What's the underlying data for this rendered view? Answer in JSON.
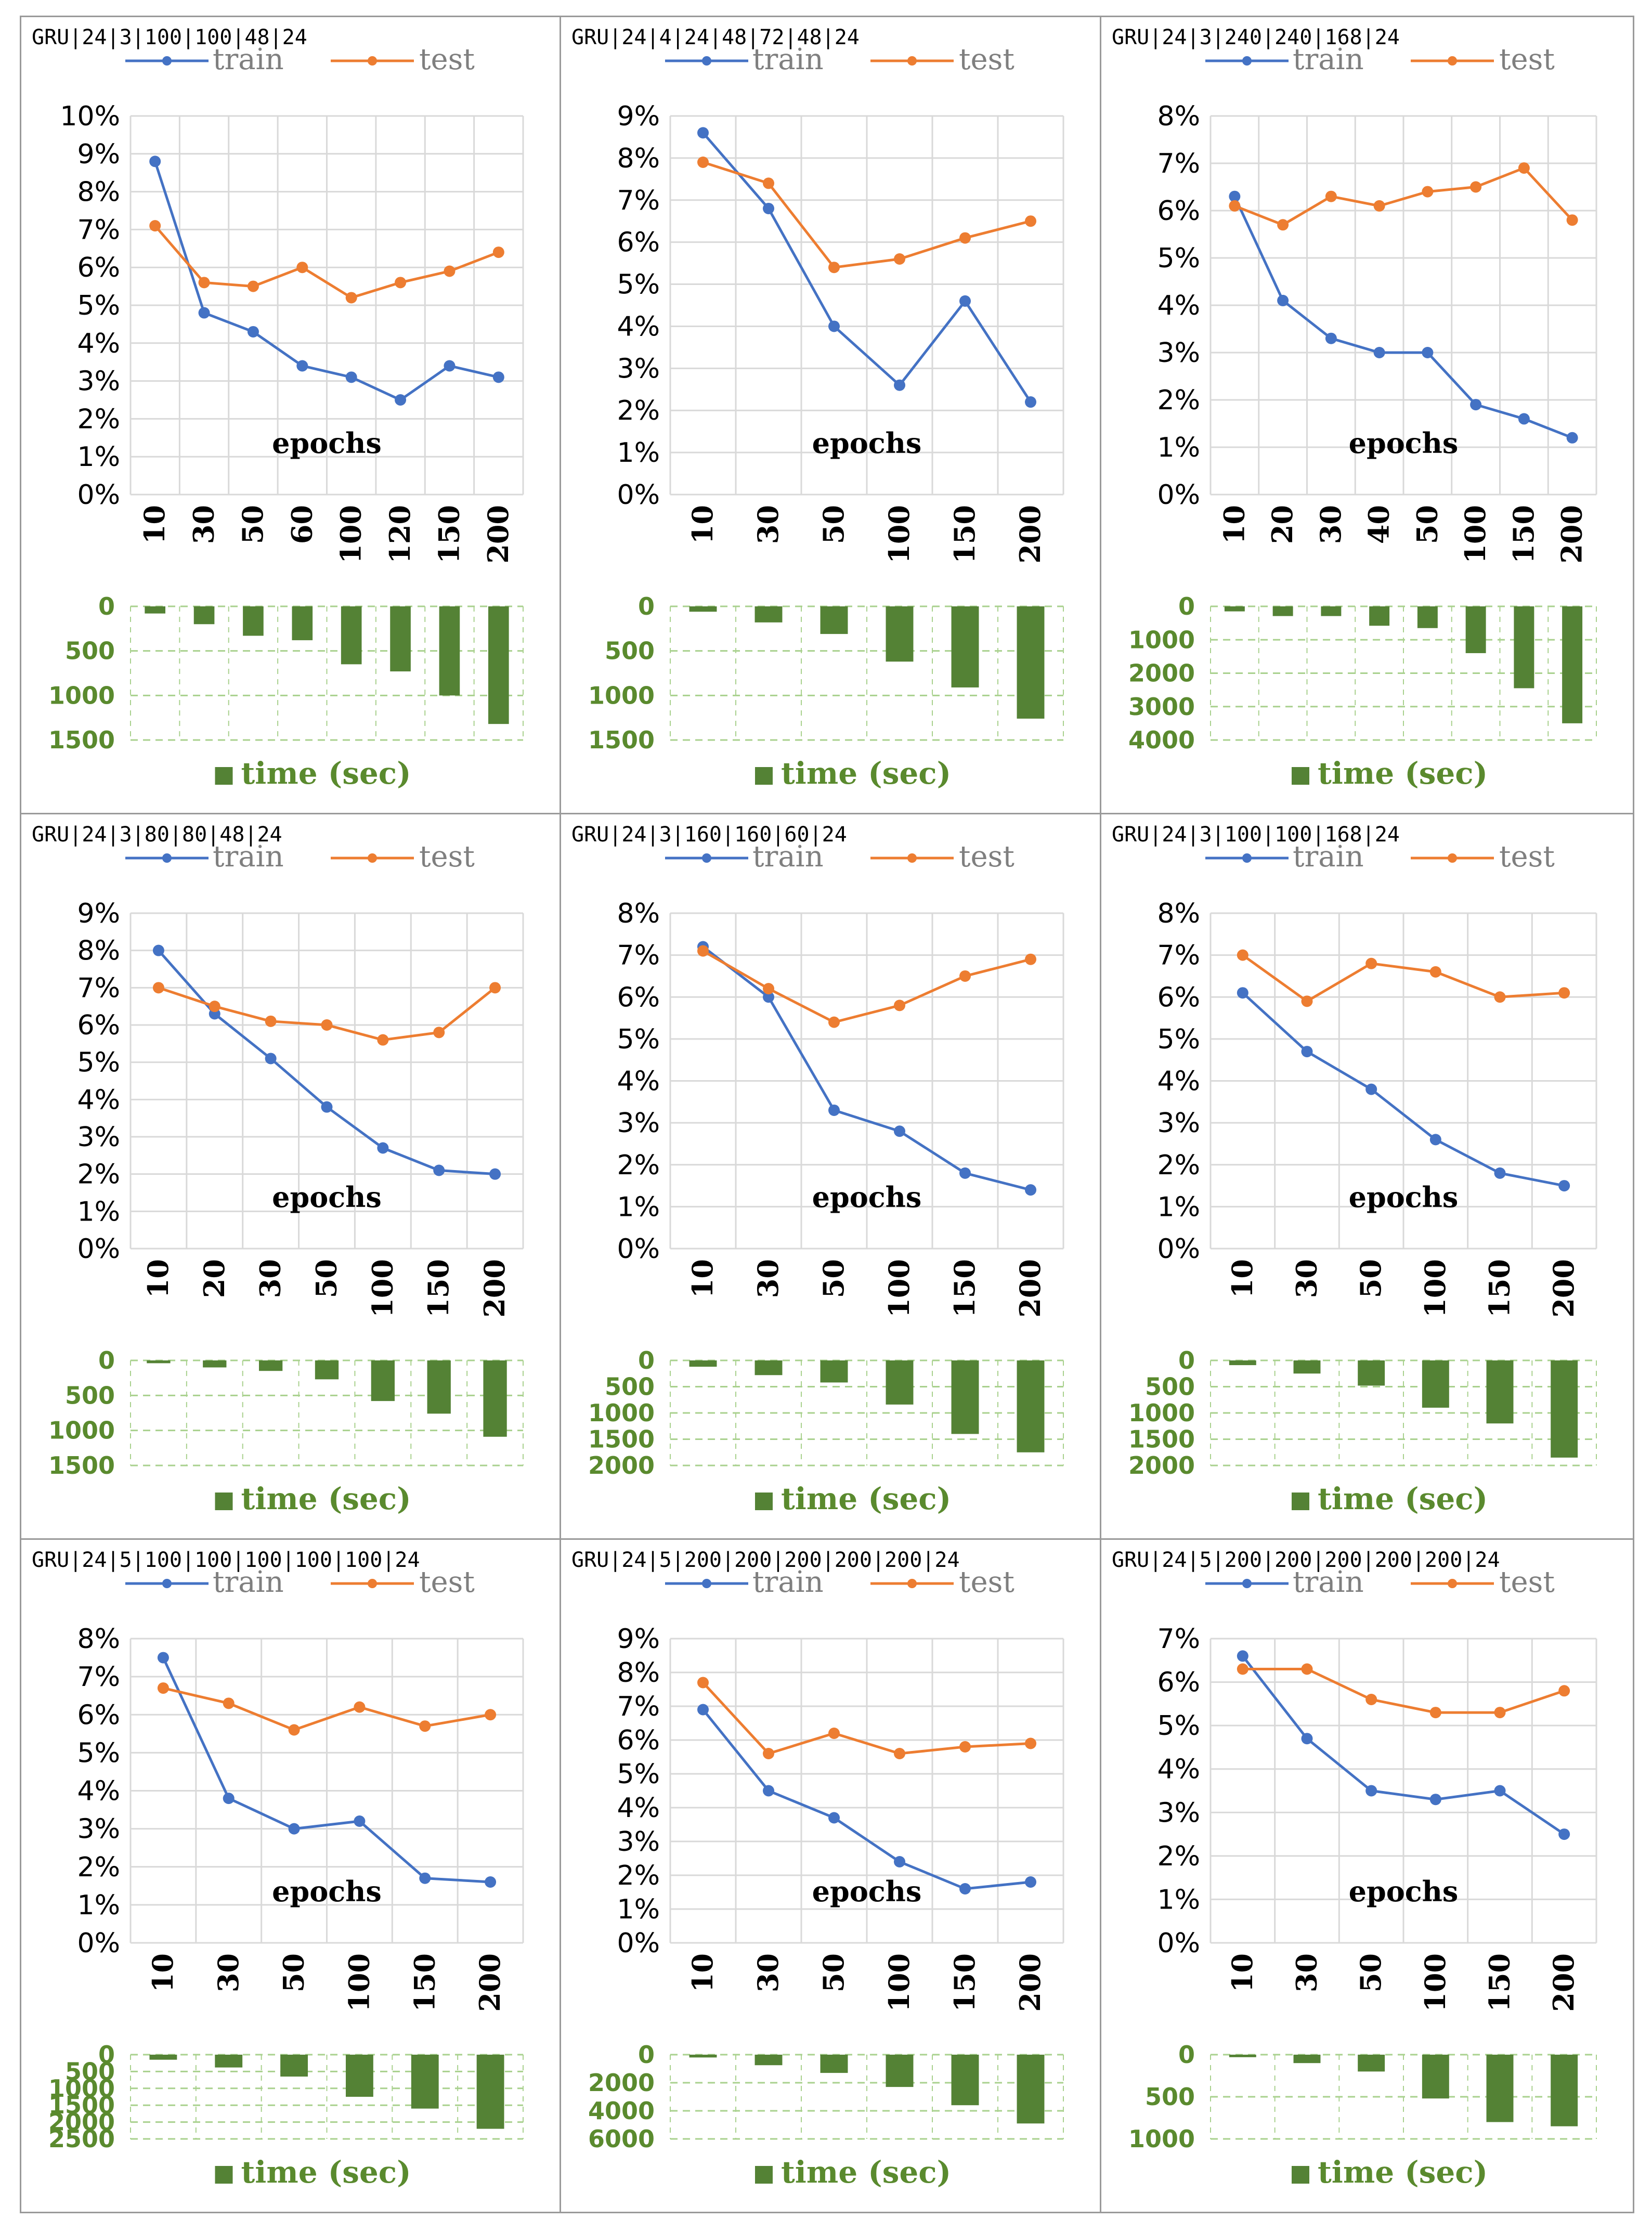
{
  "colors": {
    "train": "#4472c4",
    "test": "#ed7d31",
    "time": "#548235",
    "grid": "#d9d9d9",
    "time_grid": "#a9d18e"
  },
  "legend": {
    "train": "train",
    "test": "test",
    "time": "time (sec)"
  },
  "chart_data": [
    {
      "type": "line+bar",
      "title": "GRU|24|3|100|100|48|24",
      "categories": [
        "10",
        "30",
        "50",
        "60",
        "100",
        "120",
        "150",
        "200"
      ],
      "series": [
        {
          "name": "train",
          "values": [
            8.8,
            4.8,
            4.3,
            3.4,
            3.1,
            2.5,
            3.4,
            3.1
          ]
        },
        {
          "name": "test",
          "values": [
            7.1,
            5.6,
            5.5,
            6.0,
            5.2,
            5.6,
            5.9,
            6.4
          ]
        }
      ],
      "yticks": [
        "0%",
        "1%",
        "2%",
        "3%",
        "4%",
        "5%",
        "6%",
        "7%",
        "8%",
        "9%",
        "10%"
      ],
      "ylim": [
        0,
        10
      ],
      "xlabel": "epochs",
      "time": {
        "label": "time (sec)",
        "values": [
          80,
          200,
          330,
          380,
          650,
          730,
          1000,
          1320
        ],
        "ylim": [
          0,
          1500
        ],
        "ticks": [
          "0",
          "500",
          "1000",
          "1500"
        ]
      }
    },
    {
      "type": "line+bar",
      "title": "GRU|24|4|24|48|72|48|24",
      "categories": [
        "10",
        "30",
        "50",
        "100",
        "150",
        "200"
      ],
      "series": [
        {
          "name": "train",
          "values": [
            8.6,
            6.8,
            4.0,
            2.6,
            4.6,
            2.2
          ]
        },
        {
          "name": "test",
          "values": [
            7.9,
            7.4,
            5.4,
            5.6,
            6.1,
            6.5
          ]
        }
      ],
      "yticks": [
        "0%",
        "1%",
        "2%",
        "3%",
        "4%",
        "5%",
        "6%",
        "7%",
        "8%",
        "9%"
      ],
      "ylim": [
        0,
        9
      ],
      "xlabel": "epochs",
      "time": {
        "label": "time (sec)",
        "values": [
          60,
          180,
          310,
          620,
          910,
          1260
        ],
        "ylim": [
          0,
          1500
        ],
        "ticks": [
          "0",
          "500",
          "1000",
          "1500"
        ]
      }
    },
    {
      "type": "line+bar",
      "title": "GRU|24|3|240|240|168|24",
      "categories": [
        "10",
        "20",
        "30",
        "40",
        "50",
        "100",
        "150",
        "200"
      ],
      "series": [
        {
          "name": "train",
          "values": [
            6.3,
            4.1,
            3.3,
            3.0,
            3.0,
            1.9,
            1.6,
            1.2
          ]
        },
        {
          "name": "test",
          "values": [
            6.1,
            5.7,
            6.3,
            6.1,
            6.4,
            6.5,
            6.9,
            5.8
          ]
        }
      ],
      "yticks": [
        "0%",
        "1%",
        "2%",
        "3%",
        "4%",
        "5%",
        "6%",
        "7%",
        "8%"
      ],
      "ylim": [
        0,
        8
      ],
      "xlabel": "epochs",
      "time": {
        "label": "time (sec)",
        "values": [
          150,
          290,
          290,
          580,
          650,
          1400,
          2450,
          3500
        ],
        "ylim": [
          0,
          4000
        ],
        "ticks": [
          "0",
          "1000",
          "2000",
          "3000",
          "4000"
        ]
      }
    },
    {
      "type": "line+bar",
      "title": "GRU|24|3|80|80|48|24",
      "categories": [
        "10",
        "20",
        "30",
        "50",
        "100",
        "150",
        "200"
      ],
      "series": [
        {
          "name": "train",
          "values": [
            8.0,
            6.3,
            5.1,
            3.8,
            2.7,
            2.1,
            2.0
          ]
        },
        {
          "name": "test",
          "values": [
            7.0,
            6.5,
            6.1,
            6.0,
            5.6,
            5.8,
            7.0
          ]
        }
      ],
      "yticks": [
        "0%",
        "1%",
        "2%",
        "3%",
        "4%",
        "5%",
        "6%",
        "7%",
        "8%",
        "9%"
      ],
      "ylim": [
        0,
        9
      ],
      "xlabel": "epochs",
      "time": {
        "label": "time (sec)",
        "values": [
          40,
          100,
          150,
          270,
          580,
          760,
          1090
        ],
        "ylim": [
          0,
          1500
        ],
        "ticks": [
          "0",
          "500",
          "1000",
          "1500"
        ]
      }
    },
    {
      "type": "line+bar",
      "title": "GRU|24|3|160|160|60|24",
      "categories": [
        "10",
        "30",
        "50",
        "100",
        "150",
        "200"
      ],
      "series": [
        {
          "name": "train",
          "values": [
            7.2,
            6.0,
            3.3,
            2.8,
            1.8,
            1.4
          ]
        },
        {
          "name": "test",
          "values": [
            7.1,
            6.2,
            5.4,
            5.8,
            6.5,
            6.9
          ]
        }
      ],
      "yticks": [
        "0%",
        "1%",
        "2%",
        "3%",
        "4%",
        "5%",
        "6%",
        "7%",
        "8%"
      ],
      "ylim": [
        0,
        8
      ],
      "xlabel": "epochs",
      "time": {
        "label": "time (sec)",
        "values": [
          120,
          280,
          420,
          840,
          1400,
          1750
        ],
        "ylim": [
          0,
          2000
        ],
        "ticks": [
          "0",
          "500",
          "1000",
          "1500",
          "2000"
        ]
      }
    },
    {
      "type": "line+bar",
      "title": "GRU|24|3|100|100|168|24",
      "categories": [
        "10",
        "30",
        "50",
        "100",
        "150",
        "200"
      ],
      "series": [
        {
          "name": "train",
          "values": [
            6.1,
            4.7,
            3.8,
            2.6,
            1.8,
            1.5
          ]
        },
        {
          "name": "test",
          "values": [
            7.0,
            5.9,
            6.8,
            6.6,
            6.0,
            6.1
          ]
        }
      ],
      "yticks": [
        "0%",
        "1%",
        "2%",
        "3%",
        "4%",
        "5%",
        "6%",
        "7%",
        "8%"
      ],
      "ylim": [
        0,
        8
      ],
      "xlabel": "epochs",
      "time": {
        "label": "time (sec)",
        "values": [
          90,
          250,
          480,
          900,
          1200,
          1850
        ],
        "ylim": [
          0,
          2000
        ],
        "ticks": [
          "0",
          "500",
          "1000",
          "1500",
          "2000"
        ]
      }
    },
    {
      "type": "line+bar",
      "title": "GRU|24|5|100|100|100|100|100|24",
      "categories": [
        "10",
        "30",
        "50",
        "100",
        "150",
        "200"
      ],
      "series": [
        {
          "name": "train",
          "values": [
            7.5,
            3.8,
            3.0,
            3.2,
            1.7,
            1.6
          ]
        },
        {
          "name": "test",
          "values": [
            6.7,
            6.3,
            5.6,
            6.2,
            5.7,
            6.0
          ]
        }
      ],
      "yticks": [
        "0%",
        "1%",
        "2%",
        "3%",
        "4%",
        "5%",
        "6%",
        "7%",
        "8%"
      ],
      "ylim": [
        0,
        8
      ],
      "xlabel": "epochs",
      "time": {
        "label": "time (sec)",
        "values": [
          150,
          380,
          650,
          1250,
          1600,
          2200
        ],
        "ylim": [
          0,
          2500
        ],
        "ticks": [
          "0",
          "500",
          "1000",
          "1500",
          "2000",
          "2500"
        ]
      }
    },
    {
      "type": "line+bar",
      "title": "GRU|24|5|200|200|200|200|200|24",
      "categories": [
        "10",
        "30",
        "50",
        "100",
        "150",
        "200"
      ],
      "series": [
        {
          "name": "train",
          "values": [
            6.9,
            4.5,
            3.7,
            2.4,
            1.6,
            1.8
          ]
        },
        {
          "name": "test",
          "values": [
            7.7,
            5.6,
            6.2,
            5.6,
            5.8,
            5.9
          ]
        }
      ],
      "yticks": [
        "0%",
        "1%",
        "2%",
        "3%",
        "4%",
        "5%",
        "6%",
        "7%",
        "8%",
        "9%"
      ],
      "ylim": [
        0,
        9
      ],
      "xlabel": "epochs",
      "time": {
        "label": "time (sec)",
        "values": [
          200,
          750,
          1300,
          2300,
          3600,
          4900
        ],
        "ylim": [
          0,
          6000
        ],
        "ticks": [
          "0",
          "2000",
          "4000",
          "6000"
        ]
      }
    },
    {
      "type": "line+bar",
      "title": "GRU|24|5|200|200|200|200|200|24",
      "categories": [
        "10",
        "30",
        "50",
        "100",
        "150",
        "200"
      ],
      "series": [
        {
          "name": "train",
          "values": [
            6.6,
            4.7,
            3.5,
            3.3,
            3.5,
            2.5
          ]
        },
        {
          "name": "test",
          "values": [
            6.3,
            6.3,
            5.6,
            5.3,
            5.3,
            5.8
          ]
        }
      ],
      "yticks": [
        "0%",
        "1%",
        "2%",
        "3%",
        "4%",
        "5%",
        "6%",
        "7%"
      ],
      "ylim": [
        0,
        7
      ],
      "xlabel": "epochs",
      "time": {
        "label": "time (sec)",
        "values": [
          30,
          100,
          200,
          520,
          800,
          850
        ],
        "ylim": [
          0,
          1000
        ],
        "ticks": [
          "0",
          "500",
          "1000"
        ]
      }
    }
  ]
}
